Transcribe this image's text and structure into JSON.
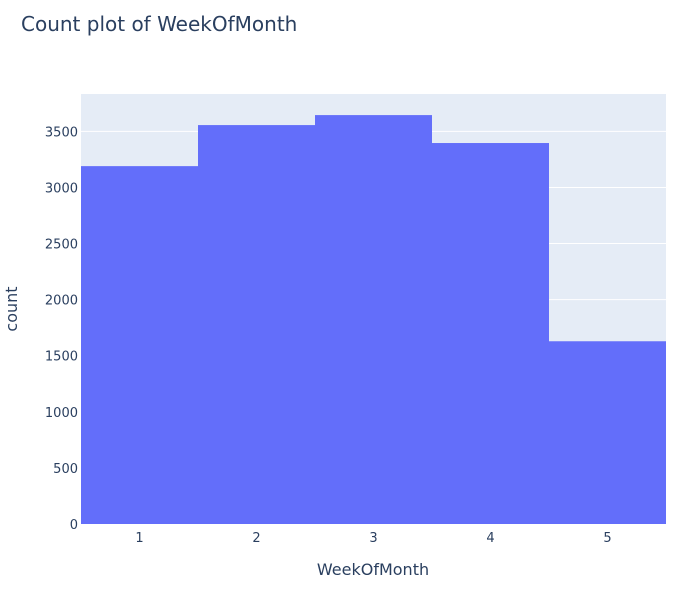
{
  "chart_data": {
    "type": "bar",
    "title": "Count plot of WeekOfMonth",
    "xlabel": "WeekOfMonth",
    "ylabel": "count",
    "categories": [
      "1",
      "2",
      "3",
      "4",
      "5"
    ],
    "values": [
      3190,
      3556,
      3645,
      3396,
      1629
    ],
    "ylim": [
      0,
      3833
    ],
    "yticks": [
      0,
      500,
      1000,
      1500,
      2000,
      2500,
      3000,
      3500
    ],
    "grid": true,
    "bar_color": "#636efa",
    "plot_bg": "#e5ecf6"
  }
}
